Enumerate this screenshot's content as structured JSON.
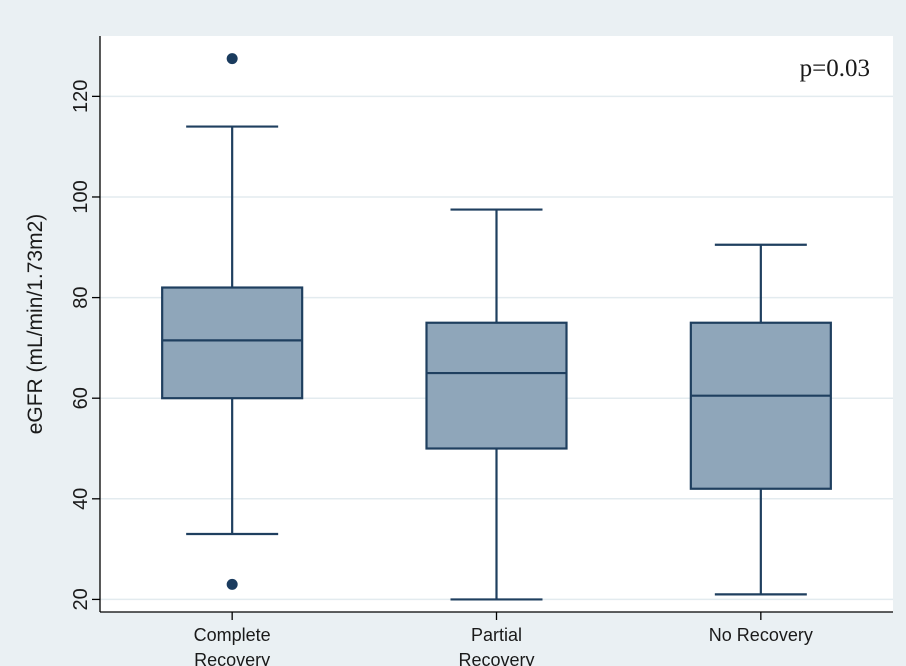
{
  "chart_data": {
    "type": "box",
    "title": "",
    "xlabel": "",
    "ylabel": "eGFR (mL/min/1.73m2)",
    "ylim": [
      17.5,
      132
    ],
    "yticks": [
      20,
      40,
      60,
      80,
      100,
      120
    ],
    "grid": true,
    "annotation": "p=0.03",
    "annotation_position": "top-right",
    "colors": {
      "box_fill": "#8fa6ba",
      "box_stroke": "#1f3f5f",
      "outlier": "#1a3b5e",
      "grid": "#e3ebef",
      "plot_bg": "#ffffff",
      "page_bg": "#eaf0f3"
    },
    "categories": [
      {
        "label_lines": [
          "Complete",
          "Recovery"
        ],
        "whisker_low": 33,
        "q1": 60,
        "median": 71.5,
        "q3": 82,
        "whisker_high": 114,
        "outliers": [
          127.5,
          23
        ]
      },
      {
        "label_lines": [
          "Partial",
          "Recovery"
        ],
        "whisker_low": 20,
        "q1": 50,
        "median": 65,
        "q3": 75,
        "whisker_high": 97.5,
        "outliers": []
      },
      {
        "label_lines": [
          "No Recovery"
        ],
        "whisker_low": 21,
        "q1": 42,
        "median": 60.5,
        "q3": 75,
        "whisker_high": 90.5,
        "outliers": []
      }
    ]
  }
}
